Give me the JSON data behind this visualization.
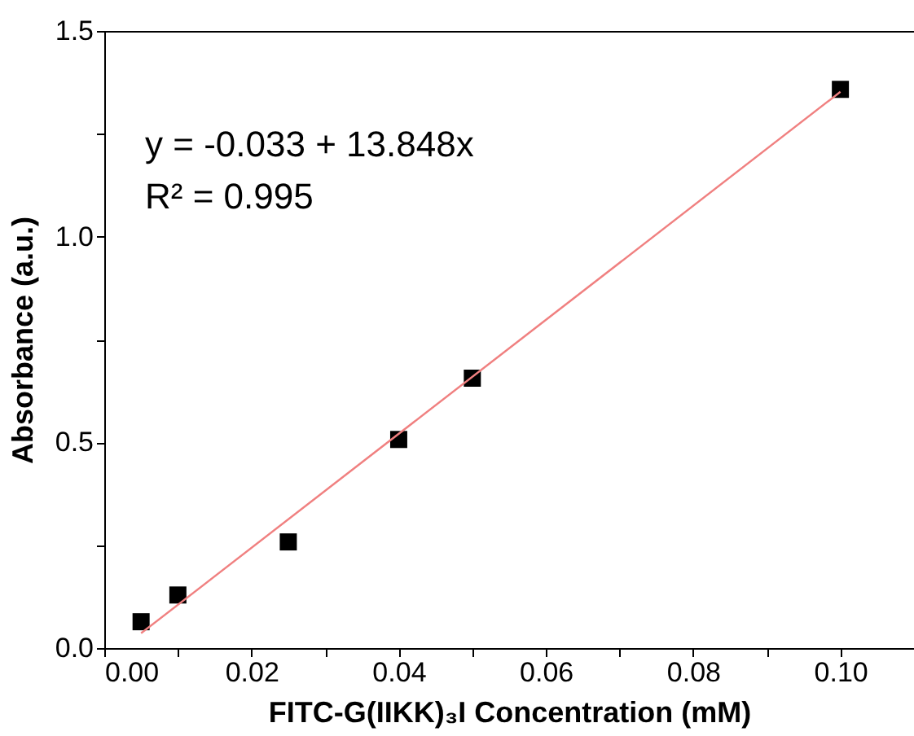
{
  "chart_data": {
    "type": "scatter",
    "xlabel": "FITC-G(IIKK)₃I Concentration (mM)",
    "ylabel": "Absorbance (a.u.)",
    "xlim": [
      0,
      0.11
    ],
    "ylim": [
      0,
      1.5
    ],
    "xticks": [
      {
        "value": 0,
        "label": "0.00"
      },
      {
        "value": 0.01,
        "label": null
      },
      {
        "value": 0.02,
        "label": "0.02"
      },
      {
        "value": 0.03,
        "label": null
      },
      {
        "value": 0.04,
        "label": "0.04"
      },
      {
        "value": 0.05,
        "label": null
      },
      {
        "value": 0.06,
        "label": "0.06"
      },
      {
        "value": 0.07,
        "label": null
      },
      {
        "value": 0.08,
        "label": "0.08"
      },
      {
        "value": 0.09,
        "label": null
      },
      {
        "value": 0.1,
        "label": "0.10"
      }
    ],
    "yticks": [
      {
        "value": 0,
        "label": "0.0"
      },
      {
        "value": 0.25,
        "label": null
      },
      {
        "value": 0.5,
        "label": "0.5"
      },
      {
        "value": 0.75,
        "label": null
      },
      {
        "value": 1,
        "label": "1.0"
      },
      {
        "value": 1.25,
        "label": null
      },
      {
        "value": 1.5,
        "label": "1.5"
      }
    ],
    "grid": false,
    "series": [
      {
        "marker": "square",
        "color": "#000000",
        "x": [
          0.005,
          0.01,
          0.025,
          0.04,
          0.05,
          0.1
        ],
        "values": [
          0.064,
          0.129,
          0.258,
          0.507,
          0.656,
          1.358
        ]
      },
      {
        "type": "line",
        "marker": "none",
        "color": "#f08080",
        "x": [
          0.005,
          0.1
        ],
        "values": [
          0.036,
          1.352
        ]
      }
    ],
    "annotations": [
      "y = -0.033 + 13.848x",
      "R² = 0.995"
    ]
  }
}
